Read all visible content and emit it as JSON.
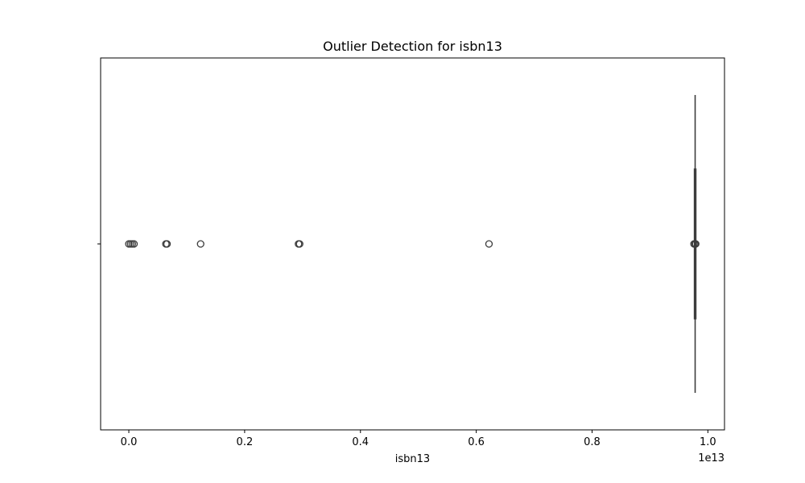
{
  "chart_data": {
    "type": "box",
    "orientation": "horizontal",
    "title": "Outlier Detection for isbn13",
    "xlabel": "isbn13",
    "ylabel": "",
    "offset_label": "1e13",
    "xlim": [
      -0.0487,
      1.0287
    ],
    "xticks": [
      0.0,
      0.2,
      0.4,
      0.6,
      0.8,
      1.0
    ],
    "xtick_labels": [
      "0.0",
      "0.2",
      "0.4",
      "0.6",
      "0.8",
      "1.0"
    ],
    "grid": false,
    "box": {
      "min": 0.978,
      "q1": 0.978,
      "median": 0.978,
      "q3": 0.9781,
      "max": 0.9781
    },
    "outliers": [
      0.0,
      0.003,
      0.006,
      0.009,
      0.064,
      0.066,
      0.124,
      0.293,
      0.295,
      0.622,
      0.976,
      0.978,
      0.979
    ],
    "box_color": "#3b75af",
    "edge_color": "#3d3d3d"
  }
}
